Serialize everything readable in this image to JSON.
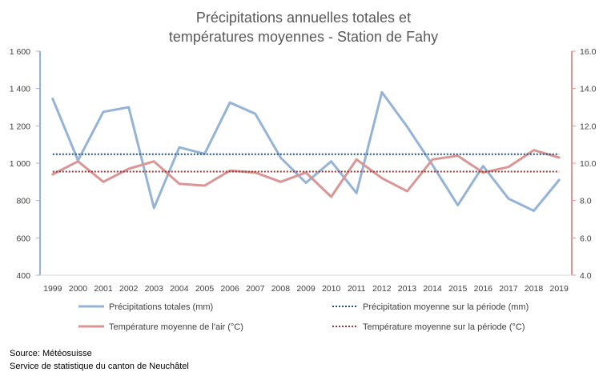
{
  "chart_data": {
    "type": "line",
    "title_lines": [
      "Précipitations annuelles totales et",
      "températures moyennes - Station de Fahy"
    ],
    "categories": [
      "1999",
      "2000",
      "2001",
      "2002",
      "2003",
      "2004",
      "2005",
      "2006",
      "2007",
      "2008",
      "2009",
      "2010",
      "2011",
      "2012",
      "2013",
      "2014",
      "2015",
      "2016",
      "2017",
      "2018",
      "2019"
    ],
    "y_left": {
      "min": 400,
      "max": 1600,
      "ticks": [
        "400",
        "600",
        "800",
        "1 000",
        "1 200",
        "1 400",
        "1 600"
      ],
      "tick_values": [
        400,
        600,
        800,
        1000,
        1200,
        1400,
        1600
      ]
    },
    "y_right": {
      "min": 4.0,
      "max": 16.0,
      "ticks": [
        "4.0",
        "6.0",
        "8.0",
        "10.0",
        "12.0",
        "14.0",
        "16.0"
      ],
      "tick_values": [
        4,
        6,
        8,
        10,
        12,
        14,
        16
      ]
    },
    "series": [
      {
        "name": "Précipitations totales (mm)",
        "axis": "left",
        "style": "solid",
        "color": "#95b3d7",
        "values": [
          1345,
          1015,
          1275,
          1300,
          760,
          1085,
          1050,
          1325,
          1265,
          1030,
          895,
          1010,
          840,
          1380,
          1195,
          990,
          775,
          985,
          810,
          745,
          910
        ]
      },
      {
        "name": "Température moyenne de l'air (°C)",
        "axis": "right",
        "style": "solid",
        "color": "#d99694",
        "values": [
          9.4,
          10.1,
          9.0,
          9.7,
          10.1,
          8.9,
          8.8,
          9.6,
          9.5,
          9.0,
          9.5,
          8.2,
          10.2,
          9.2,
          8.5,
          10.2,
          10.4,
          9.5,
          9.8,
          10.7,
          10.3
        ]
      },
      {
        "name": "Précipitation moyenne sur la période (mm)",
        "axis": "left",
        "style": "dotted",
        "color": "#1f4e79",
        "values": [
          1048,
          1048,
          1048,
          1048,
          1048,
          1048,
          1048,
          1048,
          1048,
          1048,
          1048,
          1048,
          1048,
          1048,
          1048,
          1048,
          1048,
          1048,
          1048,
          1048,
          1048
        ]
      },
      {
        "name": "Température moyenne sur la période  (°C)",
        "axis": "right",
        "style": "dotted",
        "color": "#943634",
        "values": [
          9.55,
          9.55,
          9.55,
          9.55,
          9.55,
          9.55,
          9.55,
          9.55,
          9.55,
          9.55,
          9.55,
          9.55,
          9.55,
          9.55,
          9.55,
          9.55,
          9.55,
          9.55,
          9.55,
          9.55,
          9.55
        ]
      }
    ],
    "legend_position": "bottom",
    "grid": false
  },
  "source": {
    "line1": "Source: Météosuisse",
    "line2": "Service de statistique du canton de Neuchâtel"
  }
}
